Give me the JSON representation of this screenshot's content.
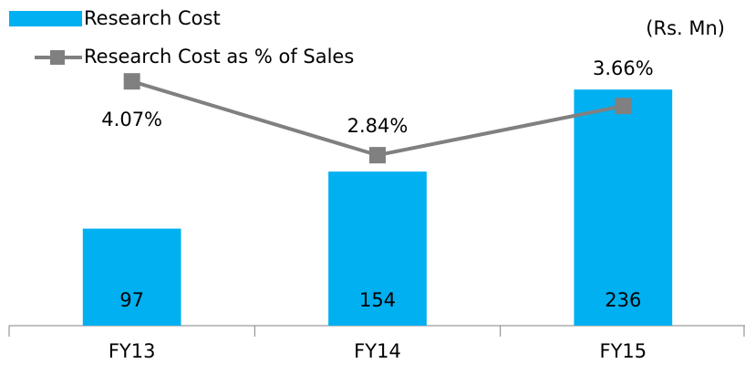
{
  "chart_data": {
    "type": "bar",
    "unit_label": "(Rs. Mn)",
    "categories": [
      "FY13",
      "FY14",
      "FY15"
    ],
    "series": [
      {
        "name": "Research Cost",
        "type": "bar",
        "color": "#00b0f0",
        "values": [
          97,
          154,
          236
        ]
      },
      {
        "name": "Research Cost as % of Sales",
        "type": "line",
        "axis": "y2",
        "color": "#808080",
        "values": [
          4.07,
          2.84,
          3.66
        ],
        "value_labels": [
          "4.07%",
          "2.84%",
          "3.66%"
        ]
      }
    ],
    "ylim": [
      0,
      300
    ],
    "y2lim": [
      0,
      5
    ],
    "legend": "top-left"
  }
}
